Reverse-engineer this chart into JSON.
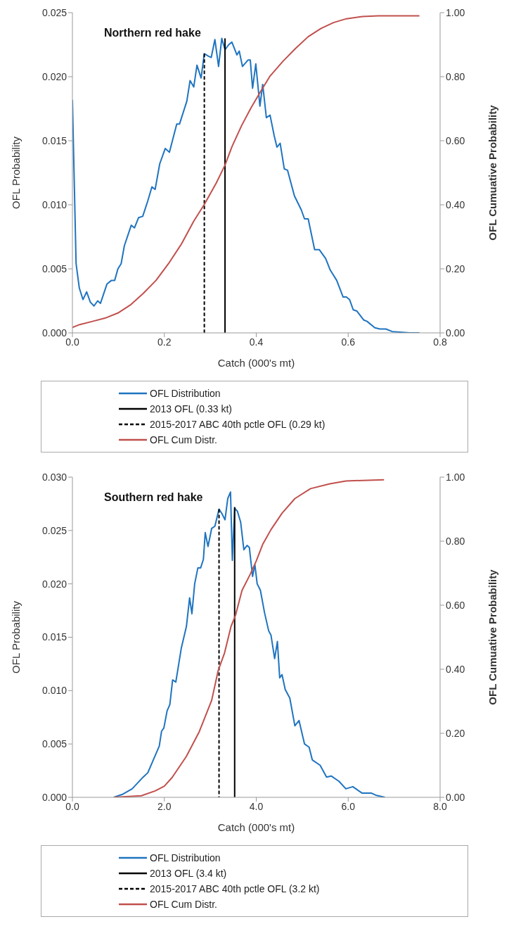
{
  "chart_data": [
    {
      "type": "line",
      "title": "Northern red hake",
      "xlabel": "Catch (000's mt)",
      "ylabel": "OFL Probability",
      "y2label": "OFL Cumuative Probability",
      "xlim": [
        0,
        0.8
      ],
      "xticks": [
        {
          "value": 0,
          "label": "0.0"
        },
        {
          "value": 0.2,
          "label": "0.2"
        },
        {
          "value": 0.4,
          "label": "0.4"
        },
        {
          "value": 0.6,
          "label": "0.6"
        },
        {
          "value": 0.8,
          "label": "0.8"
        }
      ],
      "ylim": [
        0,
        0.025
      ],
      "yticks": [
        {
          "value": 0,
          "label": "0.000"
        },
        {
          "value": 0.005,
          "label": "0.005"
        },
        {
          "value": 0.01,
          "label": "0.010"
        },
        {
          "value": 0.015,
          "label": "0.015"
        },
        {
          "value": 0.02,
          "label": "0.020"
        },
        {
          "value": 0.025,
          "label": "0.025"
        }
      ],
      "y2lim": [
        0,
        1
      ],
      "y2ticks": [
        {
          "value": 0,
          "label": "0.00"
        },
        {
          "value": 0.2,
          "label": "0.20"
        },
        {
          "value": 0.4,
          "label": "0.40"
        },
        {
          "value": 0.6,
          "label": "0.60"
        },
        {
          "value": 0.8,
          "label": "0.80"
        },
        {
          "value": 1,
          "label": "1.00"
        }
      ],
      "grid": false,
      "legend": "bottom",
      "marker": "none",
      "series": [
        {
          "name": "OFL Distribution",
          "color": "#1f74c0",
          "line_style": "solid",
          "x": [
            0,
            0.008,
            0.015,
            0.023,
            0.031,
            0.039,
            0.047,
            0.055,
            0.061,
            0.075,
            0.085,
            0.092,
            0.099,
            0.106,
            0.113,
            0.128,
            0.135,
            0.144,
            0.153,
            0.164,
            0.173,
            0.18,
            0.19,
            0.202,
            0.211,
            0.227,
            0.233,
            0.249,
            0.256,
            0.264,
            0.271,
            0.28,
            0.287,
            0.296,
            0.302,
            0.31,
            0.318,
            0.325,
            0.332,
            0.34,
            0.347,
            0.358,
            0.363,
            0.37,
            0.382,
            0.387,
            0.392,
            0.399,
            0.408,
            0.414,
            0.422,
            0.43,
            0.439,
            0.445,
            0.452,
            0.461,
            0.468,
            0.483,
            0.498,
            0.505,
            0.513,
            0.527,
            0.537,
            0.551,
            0.561,
            0.575,
            0.589,
            0.596,
            0.603,
            0.611,
            0.619,
            0.634,
            0.641,
            0.658,
            0.669,
            0.682,
            0.696,
            0.734,
            0.755
          ],
          "values": [
            0.0182,
            0.0054,
            0.0035,
            0.0026,
            0.0032,
            0.0024,
            0.0021,
            0.0025,
            0.0023,
            0.0038,
            0.0041,
            0.0041,
            0.005,
            0.0054,
            0.0068,
            0.0084,
            0.0082,
            0.009,
            0.0091,
            0.0103,
            0.0114,
            0.0112,
            0.0132,
            0.0144,
            0.0141,
            0.0163,
            0.0163,
            0.0181,
            0.0197,
            0.0192,
            0.0209,
            0.0199,
            0.0218,
            0.0216,
            0.0215,
            0.0229,
            0.0208,
            0.023,
            0.0221,
            0.0225,
            0.0227,
            0.0217,
            0.022,
            0.0208,
            0.0213,
            0.0213,
            0.0191,
            0.021,
            0.0177,
            0.0194,
            0.0168,
            0.017,
            0.0154,
            0.0145,
            0.0148,
            0.0128,
            0.0127,
            0.0107,
            0.0096,
            0.0089,
            0.0089,
            0.0065,
            0.0065,
            0.0058,
            0.0049,
            0.0041,
            0.0028,
            0.0028,
            0.0026,
            0.0018,
            0.0017,
            0.001,
            0.0009,
            0.0004,
            0.0003,
            0.0003,
            0.0001,
            0,
            0
          ]
        },
        {
          "name": "2013 OFL (0.33 kt)",
          "color": "#000000",
          "line_style": "solid",
          "x": [
            0.332,
            0.332
          ],
          "values": [
            0,
            0.023
          ]
        },
        {
          "name": "2015-2017 ABC 40th pctle OFL (0.29 kt)",
          "color": "#000000",
          "line_style": "dashed",
          "x": [
            0.287,
            0.287
          ],
          "values": [
            0.0218,
            0
          ]
        },
        {
          "name": "OFL Cum Distr.",
          "color": "#c0504d",
          "line_style": "solid",
          "axis": "y2",
          "x": [
            0,
            0.016,
            0.044,
            0.071,
            0.099,
            0.126,
            0.154,
            0.182,
            0.209,
            0.237,
            0.264,
            0.287,
            0.313,
            0.332,
            0.347,
            0.368,
            0.389,
            0.41,
            0.43,
            0.458,
            0.486,
            0.513,
            0.541,
            0.568,
            0.596,
            0.631,
            0.665,
            0.755
          ],
          "values": [
            0.017,
            0.026,
            0.036,
            0.046,
            0.062,
            0.087,
            0.123,
            0.164,
            0.216,
            0.277,
            0.349,
            0.401,
            0.468,
            0.524,
            0.581,
            0.647,
            0.704,
            0.755,
            0.802,
            0.848,
            0.889,
            0.925,
            0.951,
            0.969,
            0.981,
            0.988,
            0.99,
            0.99
          ]
        }
      ]
    },
    {
      "type": "line",
      "title": "Southern red hake",
      "xlabel": "Catch (000's mt)",
      "ylabel": "OFL Probability",
      "y2label": "OFL Cumuative Probability",
      "xlim": [
        0,
        8
      ],
      "xticks": [
        {
          "value": 0,
          "label": "0.0"
        },
        {
          "value": 2,
          "label": "2.0"
        },
        {
          "value": 4,
          "label": "4.0"
        },
        {
          "value": 6,
          "label": "6.0"
        },
        {
          "value": 8,
          "label": "8.0"
        }
      ],
      "ylim": [
        0,
        0.03
      ],
      "yticks": [
        {
          "value": 0,
          "label": "0.000"
        },
        {
          "value": 0.005,
          "label": "0.005"
        },
        {
          "value": 0.01,
          "label": "0.010"
        },
        {
          "value": 0.015,
          "label": "0.015"
        },
        {
          "value": 0.02,
          "label": "0.020"
        },
        {
          "value": 0.025,
          "label": "0.025"
        },
        {
          "value": 0.03,
          "label": "0.030"
        }
      ],
      "y2lim": [
        0,
        1
      ],
      "y2ticks": [
        {
          "value": 0,
          "label": "0.00"
        },
        {
          "value": 0.2,
          "label": "0.20"
        },
        {
          "value": 0.4,
          "label": "0.40"
        },
        {
          "value": 0.6,
          "label": "0.60"
        },
        {
          "value": 0.8,
          "label": "0.80"
        },
        {
          "value": 1,
          "label": "1.00"
        }
      ],
      "grid": false,
      "legend": "bottom",
      "marker": "none",
      "series": [
        {
          "name": "OFL Distribution",
          "color": "#1f74c0",
          "line_style": "solid",
          "x": [
            0.9,
            1.1,
            1.3,
            1.54,
            1.64,
            1.76,
            1.89,
            1.94,
            1.99,
            2.06,
            2.12,
            2.18,
            2.25,
            2.37,
            2.48,
            2.55,
            2.6,
            2.66,
            2.73,
            2.79,
            2.85,
            2.89,
            2.95,
            3.03,
            3.1,
            3.19,
            3.25,
            3.32,
            3.38,
            3.44,
            3.48,
            3.53,
            3.59,
            3.66,
            3.73,
            3.8,
            3.85,
            3.92,
            3.97,
            4.02,
            4.09,
            4.18,
            4.27,
            4.32,
            4.4,
            4.46,
            4.51,
            4.56,
            4.63,
            4.73,
            4.84,
            4.93,
            5.05,
            5.15,
            5.22,
            5.39,
            5.53,
            5.63,
            5.8,
            5.95,
            6.1,
            6.3,
            6.5,
            6.6,
            6.8
          ],
          "values": [
            0,
            0.0003,
            0.0008,
            0.0019,
            0.0023,
            0.0035,
            0.0048,
            0.0062,
            0.0065,
            0.0081,
            0.0087,
            0.011,
            0.0108,
            0.014,
            0.016,
            0.0187,
            0.0172,
            0.02,
            0.0215,
            0.0215,
            0.0223,
            0.0248,
            0.0235,
            0.0252,
            0.0254,
            0.027,
            0.0266,
            0.026,
            0.028,
            0.0286,
            0.0222,
            0.0271,
            0.0268,
            0.0258,
            0.0232,
            0.0236,
            0.0234,
            0.0207,
            0.0218,
            0.02,
            0.0194,
            0.0173,
            0.0156,
            0.0152,
            0.013,
            0.0146,
            0.0112,
            0.0115,
            0.0101,
            0.0093,
            0.0067,
            0.0072,
            0.005,
            0.0047,
            0.0035,
            0.003,
            0.0019,
            0.002,
            0.0015,
            0.0008,
            0.001,
            0.0004,
            0.0004,
            0.0002,
            0
          ]
        },
        {
          "name": "2013 OFL (3.4 kt)",
          "color": "#000000",
          "line_style": "solid",
          "x": [
            3.53,
            3.53
          ],
          "values": [
            0,
            0.0272
          ]
        },
        {
          "name": "2015-2017 ABC 40th pctle OFL (3.2 kt)",
          "color": "#000000",
          "line_style": "dashed",
          "x": [
            3.19,
            3.19
          ],
          "values": [
            0.027,
            0
          ]
        },
        {
          "name": "OFL Cum Distr.",
          "color": "#c0504d",
          "line_style": "solid",
          "axis": "y2",
          "x": [
            0.9,
            1.5,
            1.8,
            2.0,
            2.17,
            2.48,
            2.76,
            3.03,
            3.17,
            3.31,
            3.45,
            3.55,
            3.69,
            3.87,
            4.0,
            4.14,
            4.32,
            4.56,
            4.84,
            5.18,
            5.6,
            5.95,
            6.78
          ],
          "values": [
            0,
            0.005,
            0.02,
            0.035,
            0.062,
            0.128,
            0.205,
            0.303,
            0.395,
            0.451,
            0.533,
            0.569,
            0.646,
            0.697,
            0.738,
            0.79,
            0.836,
            0.887,
            0.933,
            0.964,
            0.979,
            0.988,
            0.992
          ]
        }
      ]
    }
  ]
}
